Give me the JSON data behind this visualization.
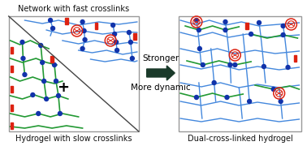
{
  "box1_label_top": "Network with fast crosslinks",
  "box1_label_bottom": "Hydrogel with slow crosslinks",
  "box2_label_bottom": "Dual-cross-linked hydrogel",
  "arrow_text1": "Stronger",
  "arrow_text2": "More dynamic",
  "plus_sign": "+",
  "bg_color": "#ffffff",
  "box_edge_color": "#999999",
  "blue_chain_color": "#4488dd",
  "green_chain_color": "#229933",
  "blue_dot_color": "#1133aa",
  "red_bar_color": "#dd2211",
  "cb8_color": "#dd2211",
  "arrow_color": "#1a3a2a",
  "diagonal_color": "#444444",
  "text_color": "#111111"
}
